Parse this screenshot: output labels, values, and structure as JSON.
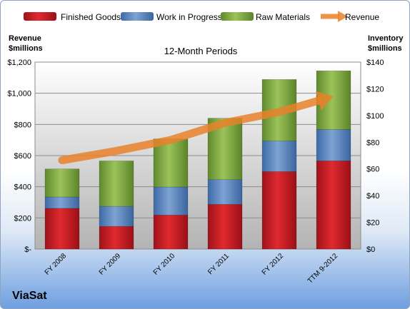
{
  "chart_data": {
    "type": "bar",
    "stacked": true,
    "title": "12-Month Periods",
    "categories": [
      "FY 2008",
      "FY 2009",
      "FY 2010",
      "FY 2011",
      "FY 2012",
      "TTM 9-2012"
    ],
    "series": [
      {
        "name": "Finished Goods",
        "axis": "right",
        "color": "#c0161c",
        "values": [
          30.5,
          17,
          25.5,
          33.5,
          58,
          66
        ]
      },
      {
        "name": "Work in Progress",
        "axis": "right",
        "color": "#4f81bd",
        "values": [
          8.5,
          15,
          21,
          18.5,
          23,
          23.5
        ]
      },
      {
        "name": "Raw Materials",
        "axis": "right",
        "color": "#77a03c",
        "values": [
          21,
          34,
          36,
          46,
          46,
          44
        ]
      },
      {
        "name": "Revenue",
        "axis": "left",
        "type": "line",
        "color": "#e8812a",
        "values": [
          570,
          630,
          700,
          810,
          880,
          980
        ]
      }
    ],
    "y_left": {
      "label": "Revenue $millions",
      "range": [
        0,
        1200
      ],
      "ticks": [
        0,
        200,
        400,
        600,
        800,
        1000,
        1200
      ],
      "tick_labels": [
        "$-",
        "$200",
        "$400",
        "$600",
        "$800",
        "$1,000",
        "$1,200"
      ]
    },
    "y_right": {
      "label": "Inventory $millions",
      "range": [
        0,
        140
      ],
      "ticks": [
        0,
        20,
        40,
        60,
        80,
        100,
        120,
        140
      ],
      "tick_labels": [
        "$0",
        "$20",
        "$40",
        "$60",
        "$80",
        "$100",
        "$120",
        "$140"
      ]
    },
    "legend_position": "top",
    "grid": true
  },
  "labels": {
    "left_axis_line1": "Revenue",
    "left_axis_line2": "$millions",
    "right_axis_line1": "Inventory",
    "right_axis_line2": "$millions",
    "company": "ViaSat"
  },
  "colors": {
    "plot_bg_top": "#ffffff",
    "plot_bg_bottom": "#b8b8b8",
    "grid": "#8c8c8c"
  }
}
